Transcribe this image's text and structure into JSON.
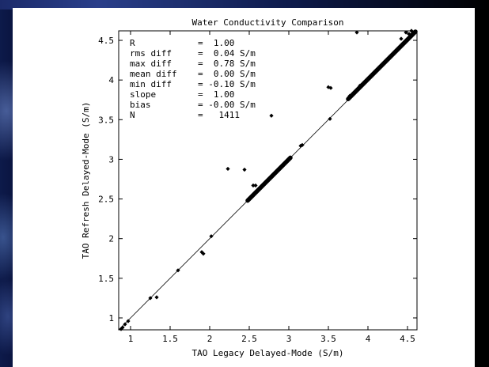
{
  "chart_data": {
    "type": "scatter",
    "title": "Water Conductivity Comparison",
    "xlabel": "TAO Legacy Delayed-Mode (S/m)",
    "ylabel": "TAO Refresh Delayed-Mode (S/m)",
    "xlim": [
      0.85,
      4.62
    ],
    "ylim": [
      0.85,
      4.62
    ],
    "xticks": [
      1,
      1.5,
      2,
      2.5,
      3,
      3.5,
      4,
      4.5
    ],
    "xtick_labels": [
      "1",
      "1.5",
      "2",
      "2.5",
      "3",
      "3.5",
      "4",
      "4.5"
    ],
    "yticks": [
      1,
      1.5,
      2,
      2.5,
      3,
      3.5,
      4,
      4.5
    ],
    "ytick_labels": [
      "1",
      "1.5",
      "2",
      "2.5",
      "3",
      "3.5",
      "4",
      "4.5"
    ],
    "grid": false,
    "marker_color": "#000000",
    "reference_line": {
      "slope": 1,
      "intercept": 0
    },
    "stats": [
      {
        "label": "R",
        "value": "=  1.00"
      },
      {
        "label": "rms diff",
        "value": "=  0.04 S/m"
      },
      {
        "label": "max diff",
        "value": "=  0.78 S/m"
      },
      {
        "label": "mean diff",
        "value": "=  0.00 S/m"
      },
      {
        "label": "min diff",
        "value": "= -0.10 S/m"
      },
      {
        "label": "slope",
        "value": "=  1.00"
      },
      {
        "label": "bias",
        "value": "= -0.00 S/m"
      },
      {
        "label": "N",
        "value": "=   1411"
      }
    ],
    "points": [
      [
        0.88,
        0.86
      ],
      [
        0.9,
        0.88
      ],
      [
        0.93,
        0.92
      ],
      [
        0.97,
        0.96
      ],
      [
        1.25,
        1.25
      ],
      [
        1.33,
        1.26
      ],
      [
        1.6,
        1.6
      ],
      [
        1.9,
        1.83
      ],
      [
        1.92,
        1.81
      ],
      [
        2.02,
        2.03
      ],
      [
        2.23,
        2.88
      ],
      [
        2.44,
        2.87
      ],
      [
        2.55,
        2.67
      ],
      [
        2.58,
        2.67
      ],
      [
        2.78,
        3.55
      ],
      [
        3.15,
        3.17
      ],
      [
        3.17,
        3.18
      ],
      [
        3.5,
        3.91
      ],
      [
        3.53,
        3.9
      ],
      [
        3.52,
        3.51
      ],
      [
        3.76,
        3.78
      ],
      [
        3.77,
        3.8
      ],
      [
        3.86,
        4.6
      ],
      [
        3.9,
        3.93
      ],
      [
        3.95,
        3.97
      ],
      [
        4.42,
        4.52
      ],
      [
        4.48,
        4.6
      ],
      [
        4.52,
        4.58
      ],
      [
        4.55,
        4.62
      ]
    ],
    "dense_segments": [
      {
        "x_start": 2.48,
        "x_end": 3.02,
        "offset": 0.0
      },
      {
        "x_start": 3.75,
        "x_end": 4.6,
        "offset": 0.01
      }
    ]
  }
}
